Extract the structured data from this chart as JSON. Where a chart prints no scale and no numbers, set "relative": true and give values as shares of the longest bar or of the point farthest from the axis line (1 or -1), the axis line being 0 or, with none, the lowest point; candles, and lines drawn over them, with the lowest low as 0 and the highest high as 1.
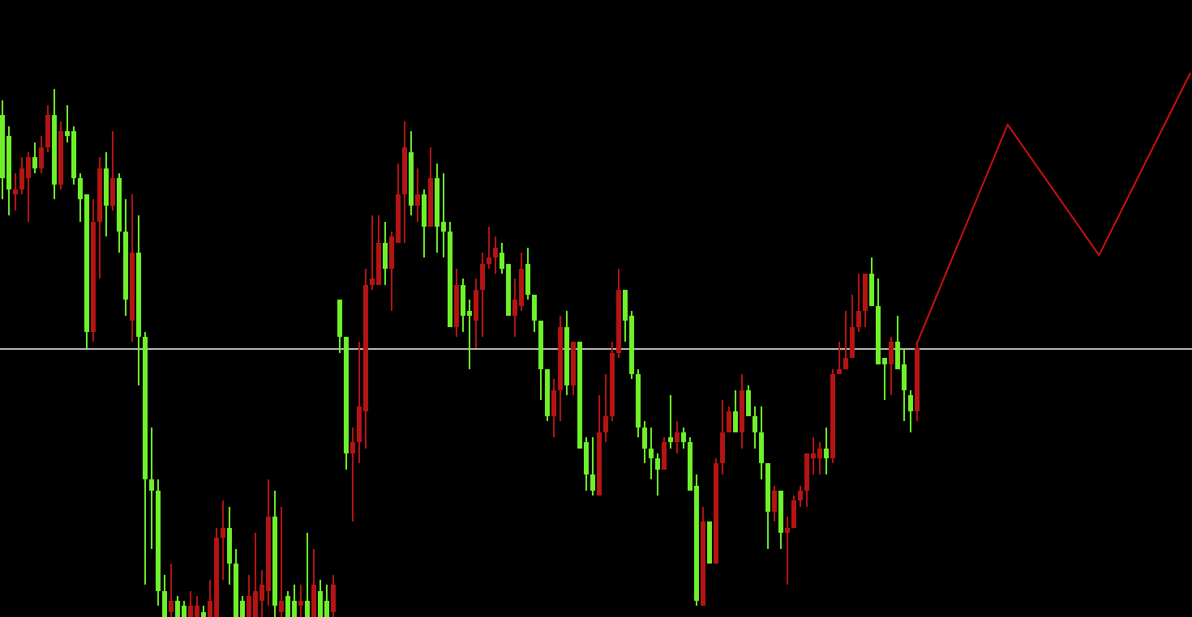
{
  "chart_data": [
    {
      "type": "candlestick",
      "relative": true,
      "categories": [
        null,
        null,
        null,
        null,
        null,
        null,
        null,
        null,
        null,
        null,
        null,
        null,
        null,
        null,
        null,
        null,
        null,
        null,
        null,
        null,
        null,
        null,
        null,
        null,
        null,
        null,
        null,
        null,
        null,
        null,
        null,
        null,
        null,
        null,
        null,
        null,
        null,
        null,
        null,
        null,
        null,
        null,
        null,
        null,
        null,
        null,
        null,
        null,
        null,
        null,
        null,
        null,
        null,
        null,
        null,
        null,
        null,
        null,
        null,
        null,
        null,
        null,
        null,
        null,
        null,
        null,
        null,
        null,
        null,
        null,
        null,
        null,
        null,
        null,
        null,
        null,
        null,
        null,
        null,
        null,
        null,
        null,
        null,
        null,
        null,
        null,
        null,
        null,
        null,
        null,
        null,
        null,
        null,
        null,
        null,
        null,
        null,
        null,
        null,
        null,
        null,
        null,
        null,
        null,
        null,
        null,
        null,
        null,
        null,
        null,
        null,
        null,
        null,
        null,
        null,
        null,
        null,
        null,
        null,
        null,
        null,
        null,
        null,
        null,
        null,
        null,
        null,
        null,
        null,
        null,
        null,
        null,
        null,
        null,
        null,
        null,
        null,
        null,
        null,
        null,
        null,
        null
      ],
      "ref_lines": [
        {
          "axis": "y",
          "value": 0.51,
          "color": "#c0c0c0"
        }
      ],
      "ohlc": [
        [
          0.95,
          0.98,
          0.79,
          0.83
        ],
        [
          0.91,
          0.93,
          0.76,
          0.81
        ],
        [
          0.8,
          0.84,
          0.77,
          0.81
        ],
        [
          0.81,
          0.87,
          0.8,
          0.85
        ],
        [
          0.83,
          0.88,
          0.75,
          0.87
        ],
        [
          0.87,
          0.9,
          0.84,
          0.85
        ],
        [
          0.85,
          0.91,
          0.84,
          0.89
        ],
        [
          0.89,
          0.97,
          0.88,
          0.95
        ],
        [
          0.95,
          1,
          0.79,
          0.82
        ],
        [
          0.82,
          0.94,
          0.81,
          0.92
        ],
        [
          0.92,
          0.97,
          0.9,
          0.91
        ],
        [
          0.92,
          0.93,
          0.82,
          0.83
        ],
        [
          0.83,
          0.84,
          0.75,
          0.79
        ],
        [
          0.8,
          0.8,
          0.51,
          0.54
        ],
        [
          0.54,
          0.79,
          0.52,
          0.75
        ],
        [
          0.75,
          0.87,
          0.64,
          0.85
        ],
        [
          0.85,
          0.88,
          0.72,
          0.78
        ],
        [
          0.78,
          0.92,
          0.77,
          0.83
        ],
        [
          0.83,
          0.84,
          0.69,
          0.73
        ],
        [
          0.73,
          0.79,
          0.57,
          0.6
        ],
        [
          0.56,
          0.8,
          0.52,
          0.69
        ],
        [
          0.69,
          0.76,
          0.44,
          0.53
        ],
        [
          0.53,
          0.54,
          0.06,
          0.26
        ],
        [
          0.26,
          0.36,
          0.13,
          0.24
        ],
        [
          0.24,
          0.26,
          0.02,
          0.05
        ],
        [
          0.05,
          0.08,
          0,
          0
        ],
        [
          0.01,
          0.1,
          0,
          0.03
        ],
        [
          0.03,
          0.04,
          0,
          0
        ],
        [
          0.02,
          0.03,
          0,
          0
        ],
        [
          0,
          0.05,
          0,
          0.02
        ],
        [
          0,
          0.04,
          0,
          0.02
        ],
        [
          0.01,
          0.02,
          0,
          0
        ],
        [
          0,
          0.07,
          0,
          0.03
        ],
        [
          0,
          0.17,
          0,
          0.15
        ],
        [
          0.15,
          0.22,
          0.07,
          0.17
        ],
        [
          0.17,
          0.21,
          0.06,
          0.1
        ],
        [
          0.1,
          0.13,
          0,
          0
        ],
        [
          0.03,
          0.04,
          0,
          0
        ],
        [
          0,
          0.08,
          0,
          0.04
        ],
        [
          0,
          0.16,
          0,
          0.05
        ],
        [
          0.03,
          0.09,
          0,
          0.06
        ],
        [
          0.05,
          0.26,
          0.02,
          0.19
        ],
        [
          0.19,
          0.24,
          0,
          0.02
        ],
        [
          0.01,
          0.21,
          0,
          0.03
        ],
        [
          0.04,
          0.05,
          0,
          0
        ],
        [
          0.03,
          0.06,
          0,
          0
        ],
        [
          0.02,
          0.06,
          0,
          0.03
        ],
        [
          0.03,
          0.16,
          0,
          0
        ],
        [
          0,
          0.13,
          0,
          0.06
        ],
        [
          0.05,
          0.07,
          0,
          0
        ],
        [
          0.03,
          0.06,
          0,
          0
        ],
        [
          0.01,
          0.08,
          0,
          0.06
        ],
        [
          0.6,
          0.6,
          0.5,
          0.53
        ],
        [
          0.53,
          0.53,
          0.28,
          0.31
        ],
        [
          0.31,
          0.36,
          0.18,
          0.33
        ],
        [
          0.33,
          0.52,
          0.29,
          0.4
        ],
        [
          0.39,
          0.66,
          0.32,
          0.63
        ],
        [
          0.63,
          0.76,
          0.62,
          0.64
        ],
        [
          0.63,
          0.76,
          0.63,
          0.71
        ],
        [
          0.71,
          0.75,
          0.63,
          0.66
        ],
        [
          0.66,
          0.73,
          0.58,
          0.72
        ],
        [
          0.71,
          0.86,
          0.71,
          0.8
        ],
        [
          0.8,
          0.94,
          0.71,
          0.89
        ],
        [
          0.88,
          0.92,
          0.76,
          0.78
        ],
        [
          0.78,
          0.85,
          0.75,
          0.8
        ],
        [
          0.8,
          0.81,
          0.68,
          0.74
        ],
        [
          0.74,
          0.89,
          0.74,
          0.83
        ],
        [
          0.83,
          0.86,
          0.69,
          0.74
        ],
        [
          0.75,
          0.84,
          0.68,
          0.73
        ],
        [
          0.73,
          0.75,
          0.55,
          0.55
        ],
        [
          0.55,
          0.66,
          0.53,
          0.63
        ],
        [
          0.63,
          0.64,
          0.54,
          0.57
        ],
        [
          0.58,
          0.6,
          0.47,
          0.57
        ],
        [
          0.56,
          0.64,
          0.51,
          0.62
        ],
        [
          0.62,
          0.69,
          0.53,
          0.67
        ],
        [
          0.67,
          0.74,
          0.66,
          0.68
        ],
        [
          0.68,
          0.72,
          0.65,
          0.7
        ],
        [
          0.69,
          0.71,
          0.65,
          0.66
        ],
        [
          0.67,
          0.67,
          0.57,
          0.57
        ],
        [
          0.57,
          0.64,
          0.53,
          0.6
        ],
        [
          0.59,
          0.69,
          0.58,
          0.66
        ],
        [
          0.67,
          0.7,
          0.6,
          0.61
        ],
        [
          0.61,
          0.61,
          0.54,
          0.56
        ],
        [
          0.56,
          0.56,
          0.41,
          0.47
        ],
        [
          0.47,
          0.47,
          0.37,
          0.38
        ],
        [
          0.38,
          0.45,
          0.34,
          0.43
        ],
        [
          0.43,
          0.57,
          0.37,
          0.55
        ],
        [
          0.55,
          0.58,
          0.42,
          0.44
        ],
        [
          0.44,
          0.52,
          0.42,
          0.52
        ],
        [
          0.52,
          0.52,
          0.32,
          0.32
        ],
        [
          0.33,
          0.34,
          0.24,
          0.27
        ],
        [
          0.27,
          0.34,
          0.23,
          0.24
        ],
        [
          0.23,
          0.42,
          0.23,
          0.35
        ],
        [
          0.35,
          0.46,
          0.33,
          0.38
        ],
        [
          0.38,
          0.52,
          0.37,
          0.5
        ],
        [
          0.5,
          0.66,
          0.49,
          0.62
        ],
        [
          0.62,
          0.62,
          0.52,
          0.56
        ],
        [
          0.57,
          0.58,
          0.45,
          0.46
        ],
        [
          0.46,
          0.47,
          0.34,
          0.36
        ],
        [
          0.36,
          0.37,
          0.29,
          0.32
        ],
        [
          0.32,
          0.36,
          0.26,
          0.3
        ],
        [
          0.3,
          0.31,
          0.23,
          0.28
        ],
        [
          0.28,
          0.34,
          0.28,
          0.33
        ],
        [
          0.34,
          0.42,
          0.32,
          0.33
        ],
        [
          0.33,
          0.37,
          0.31,
          0.35
        ],
        [
          0.35,
          0.36,
          0.32,
          0.33
        ],
        [
          0.33,
          0.34,
          0.24,
          0.24
        ],
        [
          0.25,
          0.27,
          0.02,
          0.03
        ],
        [
          0.02,
          0.21,
          0.02,
          0.18
        ],
        [
          0.18,
          0.18,
          0.1,
          0.1
        ],
        [
          0.1,
          0.3,
          0.1,
          0.29
        ],
        [
          0.29,
          0.41,
          0.27,
          0.35
        ],
        [
          0.35,
          0.4,
          0.35,
          0.39
        ],
        [
          0.39,
          0.43,
          0.35,
          0.35
        ],
        [
          0.35,
          0.46,
          0.32,
          0.43
        ],
        [
          0.43,
          0.44,
          0.38,
          0.38
        ],
        [
          0.38,
          0.4,
          0.32,
          0.35
        ],
        [
          0.35,
          0.4,
          0.26,
          0.29
        ],
        [
          0.29,
          0.29,
          0.13,
          0.2
        ],
        [
          0.2,
          0.25,
          0.18,
          0.24
        ],
        [
          0.24,
          0.24,
          0.13,
          0.16
        ],
        [
          0.16,
          0.19,
          0.06,
          0.17
        ],
        [
          0.17,
          0.23,
          0.17,
          0.22
        ],
        [
          0.22,
          0.25,
          0.21,
          0.24
        ],
        [
          0.24,
          0.31,
          0.21,
          0.31
        ],
        [
          0.3,
          0.34,
          0.27,
          0.31
        ],
        [
          0.3,
          0.33,
          0.27,
          0.32
        ],
        [
          0.32,
          0.36,
          0.27,
          0.3
        ],
        [
          0.3,
          0.47,
          0.29,
          0.46
        ],
        [
          0.46,
          0.52,
          0.46,
          0.47
        ],
        [
          0.47,
          0.58,
          0.47,
          0.49
        ],
        [
          0.49,
          0.61,
          0.49,
          0.55
        ],
        [
          0.55,
          0.65,
          0.54,
          0.58
        ],
        [
          0.58,
          0.65,
          0.55,
          0.65
        ],
        [
          0.65,
          0.68,
          0.59,
          0.59
        ],
        [
          0.59,
          0.64,
          0.48,
          0.48
        ],
        [
          0.49,
          0.49,
          0.41,
          0.48
        ],
        [
          0.48,
          0.53,
          0.42,
          0.52
        ],
        [
          0.52,
          0.57,
          0.47,
          0.47
        ],
        [
          0.48,
          0.51,
          0.37,
          0.43
        ],
        [
          0.42,
          0.43,
          0.35,
          0.39
        ],
        [
          0.39,
          0.52,
          0.37,
          0.51
        ]
      ],
      "colors": [
        "#6ef02a",
        "#6ef02a",
        "#b41414",
        "#b41414",
        "#b41414",
        "#6ef02a",
        "#b41414",
        "#b41414",
        "#6ef02a",
        "#b41414",
        "#6ef02a",
        "#6ef02a",
        "#6ef02a",
        "#6ef02a",
        "#b41414",
        "#b41414",
        "#6ef02a",
        "#b41414",
        "#6ef02a",
        "#6ef02a",
        "#b41414",
        "#6ef02a",
        "#6ef02a",
        "#6ef02a",
        "#6ef02a",
        "#6ef02a",
        "#b41414",
        "#6ef02a",
        "#6ef02a",
        "#b41414",
        "#b41414",
        "#6ef02a",
        "#b41414",
        "#b41414",
        "#b41414",
        "#6ef02a",
        "#6ef02a",
        "#6ef02a",
        "#b41414",
        "#b41414",
        "#b41414",
        "#b41414",
        "#6ef02a",
        "#b41414",
        "#6ef02a",
        "#6ef02a",
        "#b41414",
        "#6ef02a",
        "#b41414",
        "#6ef02a",
        "#6ef02a",
        "#b41414",
        "#6ef02a",
        "#6ef02a",
        "#b41414",
        "#b41414",
        "#b41414",
        "#b41414",
        "#b41414",
        "#6ef02a",
        "#b41414",
        "#b41414",
        "#b41414",
        "#6ef02a",
        "#b41414",
        "#6ef02a",
        "#b41414",
        "#6ef02a",
        "#6ef02a",
        "#6ef02a",
        "#b41414",
        "#6ef02a",
        "#6ef02a",
        "#b41414",
        "#b41414",
        "#b41414",
        "#b41414",
        "#6ef02a",
        "#6ef02a",
        "#b41414",
        "#b41414",
        "#6ef02a",
        "#6ef02a",
        "#6ef02a",
        "#6ef02a",
        "#b41414",
        "#b41414",
        "#6ef02a",
        "#b41414",
        "#6ef02a",
        "#6ef02a",
        "#6ef02a",
        "#b41414",
        "#b41414",
        "#b41414",
        "#b41414",
        "#6ef02a",
        "#6ef02a",
        "#6ef02a",
        "#6ef02a",
        "#6ef02a",
        "#6ef02a",
        "#b41414",
        "#6ef02a",
        "#b41414",
        "#6ef02a",
        "#6ef02a",
        "#6ef02a",
        "#b41414",
        "#6ef02a",
        "#b41414",
        "#b41414",
        "#b41414",
        "#6ef02a",
        "#b41414",
        "#6ef02a",
        "#6ef02a",
        "#6ef02a",
        "#6ef02a",
        "#b41414",
        "#6ef02a",
        "#b41414",
        "#b41414",
        "#b41414",
        "#b41414",
        "#b41414",
        "#b41414",
        "#6ef02a",
        "#b41414",
        "#b41414",
        "#b41414",
        "#b41414",
        "#b41414",
        "#b41414",
        "#6ef02a",
        "#6ef02a",
        "#6ef02a",
        "#b41414",
        "#6ef02a",
        "#6ef02a",
        "#6ef02a",
        "#b41414"
      ]
    },
    {
      "type": "line",
      "relative": true,
      "categories": [
        null,
        null,
        null,
        null
      ],
      "values": [
        0,
        0.81,
        0.33,
        1
      ],
      "color": "#d01010"
    }
  ]
}
